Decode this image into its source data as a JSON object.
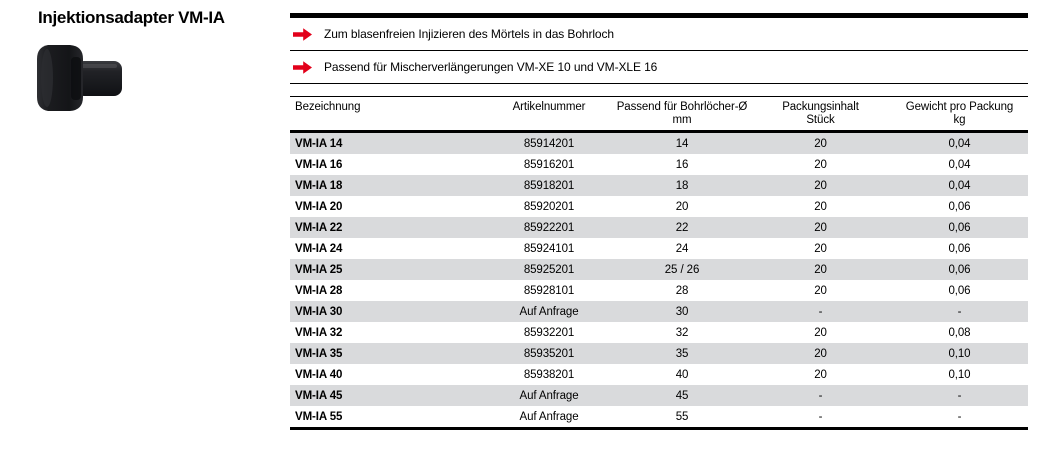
{
  "page": {
    "title": "Injektionsadapter VM-IA"
  },
  "product_image": {
    "name": "injektionsadapter-product-photo"
  },
  "features": [
    "Zum blasenfreien Injizieren des Mörtels in das Bohrloch",
    "Passend für Mischerverlängerungen VM-XE 10 und VM-XLE 16"
  ],
  "table": {
    "columns": [
      {
        "label": "Bezeichnung",
        "sub": ""
      },
      {
        "label": "Artikelnummer",
        "sub": ""
      },
      {
        "label": "Passend für Bohrlöcher-Ø",
        "sub": "mm"
      },
      {
        "label": "Packungsinhalt",
        "sub": "Stück"
      },
      {
        "label": "Gewicht pro Packung",
        "sub": "kg"
      }
    ],
    "rows": [
      [
        "VM-IA 14",
        "85914201",
        "14",
        "20",
        "0,04"
      ],
      [
        "VM-IA 16",
        "85916201",
        "16",
        "20",
        "0,04"
      ],
      [
        "VM-IA 18",
        "85918201",
        "18",
        "20",
        "0,04"
      ],
      [
        "VM-IA 20",
        "85920201",
        "20",
        "20",
        "0,06"
      ],
      [
        "VM-IA 22",
        "85922201",
        "22",
        "20",
        "0,06"
      ],
      [
        "VM-IA 24",
        "85924101",
        "24",
        "20",
        "0,06"
      ],
      [
        "VM-IA 25",
        "85925201",
        "25 / 26",
        "20",
        "0,06"
      ],
      [
        "VM-IA 28",
        "85928101",
        "28",
        "20",
        "0,06"
      ],
      [
        "VM-IA 30",
        "Auf Anfrage",
        "30",
        "-",
        "-"
      ],
      [
        "VM-IA 32",
        "85932201",
        "32",
        "20",
        "0,08"
      ],
      [
        "VM-IA 35",
        "85935201",
        "35",
        "20",
        "0,10"
      ],
      [
        "VM-IA 40",
        "85938201",
        "40",
        "20",
        "0,10"
      ],
      [
        "VM-IA 45",
        "Auf Anfrage",
        "45",
        "-",
        "-"
      ],
      [
        "VM-IA 55",
        "Auf Anfrage",
        "55",
        "-",
        "-"
      ]
    ]
  },
  "colors": {
    "accent_red": "#e2001a",
    "row_alt_gray": "#d9dadc",
    "line_black": "#000000"
  }
}
